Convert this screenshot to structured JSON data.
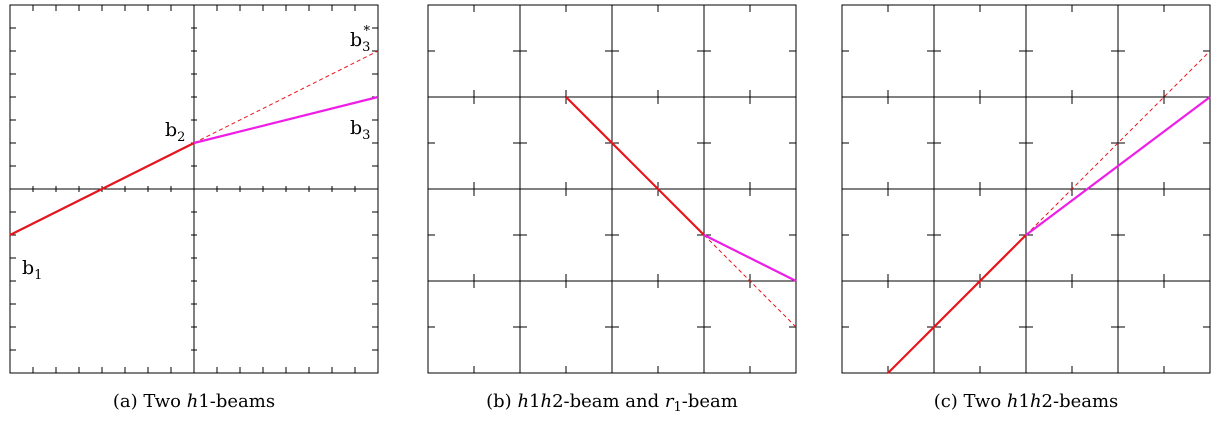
{
  "panels": [
    {
      "id": "a",
      "caption": {
        "prefix": "(a) Two ",
        "italic": "h",
        "suffix": "1-beams"
      },
      "labels": [
        {
          "base": "b",
          "sub": "1",
          "sup": ""
        },
        {
          "base": "b",
          "sub": "2",
          "sup": ""
        },
        {
          "base": "b",
          "sub": "3",
          "sup": ""
        },
        {
          "base": "b",
          "sub": "3",
          "sup": "*"
        }
      ]
    },
    {
      "id": "b",
      "caption": {
        "prefix": "(b) ",
        "italic": "h",
        "mid": "1",
        "italic2": "h",
        "mid2": "2-beam and ",
        "italic3": "r",
        "sub3": "1",
        "suffix": "-beam"
      },
      "labels": []
    },
    {
      "id": "c",
      "caption": {
        "prefix": "(c) Two ",
        "italic": "h",
        "mid": "1",
        "italic2": "h",
        "suffix": "2-beams"
      },
      "labels": []
    }
  ],
  "colors": {
    "beam_primary": "#e8141b",
    "beam_secondary": "#ee1ee6",
    "grid": "#000000"
  }
}
